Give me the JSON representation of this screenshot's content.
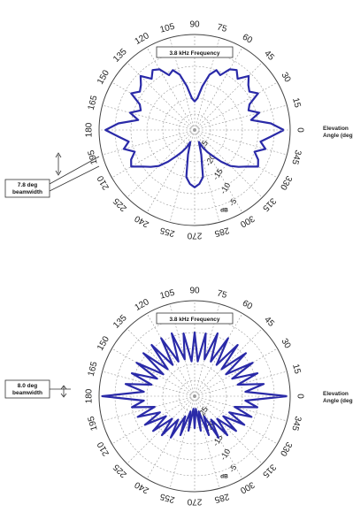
{
  "chart_data": [
    {
      "type": "polar-line",
      "title": "3.8 kHz Frequency",
      "angle_label_line1": "Elevation",
      "angle_label_line2": "Angle (deg)",
      "angle_ticks": [
        "0",
        "15",
        "30",
        "45",
        "60",
        "75",
        "90",
        "105",
        "120",
        "135",
        "150",
        "165",
        "180",
        "195",
        "210",
        "225",
        "240",
        "255",
        "270",
        "285",
        "300",
        "315",
        "330",
        "345"
      ],
      "radial_ticks": [
        "-25",
        "-20",
        "-15",
        "-10",
        "-5"
      ],
      "radial_unit": "dB",
      "rlim": [
        -30,
        0
      ],
      "beamwidth_line1": "7.8 deg",
      "beamwidth_line2": "beamwidth",
      "series": [
        {
          "angles_deg": [
            0,
            5,
            10,
            15,
            20,
            25,
            30,
            35,
            40,
            45,
            50,
            55,
            60,
            65,
            70,
            75,
            80,
            85,
            90,
            95,
            100,
            105,
            110,
            115,
            120,
            125,
            130,
            135,
            140,
            145,
            150,
            155,
            160,
            165,
            170,
            175,
            180,
            185,
            190,
            195,
            200,
            205,
            210,
            215,
            220,
            225,
            230,
            235,
            240,
            245,
            250,
            255,
            260,
            265,
            270,
            275,
            280,
            285,
            290,
            295,
            300,
            305,
            310,
            315,
            320,
            325,
            330,
            335,
            340,
            345,
            350,
            355
          ],
          "values_db": [
            -2,
            -6,
            -12,
            -9,
            -12,
            -11,
            -7,
            -9,
            -8,
            -6,
            -9,
            -7,
            -8,
            -11,
            -10,
            -12,
            -16,
            -20,
            -21,
            -20,
            -16,
            -12,
            -10,
            -11,
            -8,
            -7,
            -9,
            -6,
            -8,
            -9,
            -7,
            -11,
            -12,
            -9,
            -12,
            -6,
            -2,
            -6,
            -9,
            -7,
            -10,
            -8,
            -7,
            -10,
            -12,
            -14,
            -17,
            -20,
            -22,
            -24,
            -26,
            -22,
            -15,
            -13,
            -12,
            -13,
            -15,
            -22,
            -26,
            -24,
            -22,
            -20,
            -17,
            -14,
            -12,
            -10,
            -7,
            -8,
            -10,
            -7,
            -9,
            -6
          ]
        }
      ]
    },
    {
      "type": "polar-line",
      "title": "3.8 kHz Frequency",
      "angle_label_line1": "Elevation",
      "angle_label_line2": "Angle (deg",
      "angle_ticks": [
        "0",
        "15",
        "30",
        "45",
        "60",
        "75",
        "90",
        "105",
        "120",
        "135",
        "150",
        "165",
        "180",
        "195",
        "210",
        "225",
        "240",
        "255",
        "270",
        "285",
        "300",
        "315",
        "330",
        "345"
      ],
      "radial_ticks": [
        "-25",
        "-20",
        "-15",
        "-10",
        "-5"
      ],
      "radial_unit": "dB",
      "rlim": [
        -30,
        0
      ],
      "beamwidth_line1": "8.0 deg",
      "beamwidth_line2": "beamwidth",
      "series": [
        {
          "angles_deg": [
            0,
            5,
            10,
            15,
            20,
            25,
            30,
            35,
            40,
            45,
            50,
            55,
            60,
            65,
            70,
            75,
            80,
            85,
            90,
            95,
            100,
            105,
            110,
            115,
            120,
            125,
            130,
            135,
            140,
            145,
            150,
            155,
            160,
            165,
            170,
            175,
            180,
            185,
            190,
            195,
            200,
            205,
            210,
            215,
            220,
            225,
            230,
            235,
            240,
            245,
            250,
            255,
            260,
            265,
            270,
            275,
            280,
            285,
            290,
            295,
            300,
            305,
            310,
            315,
            320,
            325,
            330,
            335,
            340,
            345,
            350,
            355
          ],
          "values_db": [
            -1,
            -14,
            -8,
            -16,
            -9,
            -17,
            -9,
            -18,
            -9,
            -18,
            -9,
            -18,
            -9,
            -18,
            -9,
            -18,
            -10,
            -19,
            -10,
            -19,
            -10,
            -18,
            -9,
            -18,
            -9,
            -18,
            -9,
            -18,
            -9,
            -18,
            -9,
            -17,
            -9,
            -16,
            -8,
            -14,
            -1,
            -14,
            -10,
            -17,
            -11,
            -18,
            -12,
            -19,
            -13,
            -20,
            -14,
            -21,
            -15,
            -23,
            -17,
            -25,
            -19,
            -26,
            -20,
            -26,
            -19,
            -25,
            -17,
            -23,
            -15,
            -21,
            -14,
            -20,
            -13,
            -19,
            -12,
            -18,
            -11,
            -17,
            -10,
            -14
          ]
        }
      ]
    }
  ]
}
